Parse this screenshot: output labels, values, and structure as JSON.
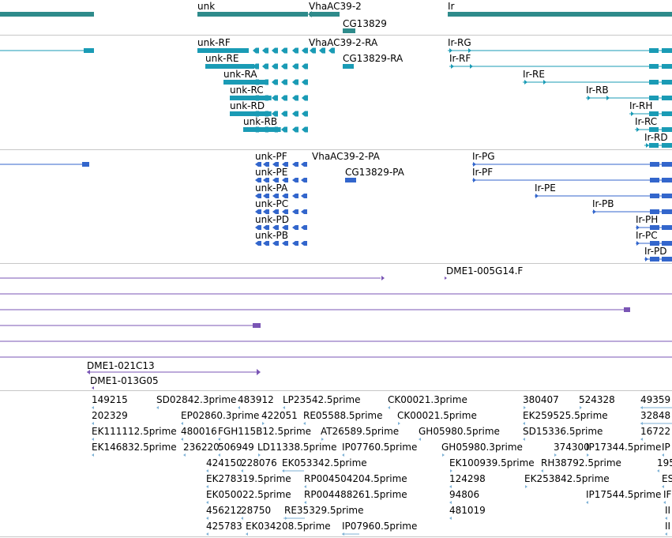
{
  "colors": {
    "gene": "#2e8b8b",
    "transcript": "#1a9bb5",
    "protein": "#3366cc",
    "clone": "#7a55b5",
    "est": "#7fb2d6"
  },
  "tracks": {
    "genes": {
      "labels": [
        "unk",
        "VhaAC39-2",
        "CG13829",
        "Ir"
      ]
    },
    "transcripts": {
      "labels": [
        "unk-RF",
        "unk-RE",
        "unk-RA",
        "unk-RC",
        "unk-RD",
        "unk-RB",
        "VhaAC39-2-RA",
        "CG13829-RA",
        "Ir-RG",
        "Ir-RF",
        "Ir-RE",
        "Ir-RB",
        "Ir-RH",
        "Ir-RC",
        "Ir-RD"
      ]
    },
    "proteins": {
      "labels": [
        "unk-PF",
        "unk-PE",
        "unk-PA",
        "unk-PC",
        "unk-PD",
        "unk-PB",
        "VhaAC39-2-PA",
        "CG13829-PA",
        "Ir-PG",
        "Ir-PF",
        "Ir-PE",
        "Ir-PB",
        "Ir-PH",
        "Ir-PC",
        "Ir-PD"
      ]
    },
    "clones": {
      "labels": [
        "DME1-005G14.F",
        "DME1-021C13",
        "DME1-013G05"
      ]
    },
    "ests": {
      "labels": [
        "149215",
        "SD02842.3prime",
        "483912",
        "LP23542.5prime",
        "CK00021.3prime",
        "380407",
        "524328",
        "49359",
        "202329",
        "EP02860.3prime",
        "422051",
        "RE05588.5prime",
        "CK00021.5prime",
        "EK259525.5prime",
        "32848",
        "EK111112.5prime",
        "480016",
        "FGH115B12.5prime",
        "AT26589.5prime",
        "GH05980.5prime",
        "SD15336.5prime",
        "16722",
        "EK146832.5prime",
        "236220",
        "506949",
        "LD11338.5prime",
        "IP07760.5prime",
        "GH05980.3prime",
        "374300",
        "IP17344.5prime",
        "IP",
        "424150",
        "228076",
        "EK053342.5prime",
        "EK100939.5prime",
        "RH38792.5prime",
        "195",
        "EK278319.5prime",
        "RP004504204.5prime",
        "124298",
        "EK253842.5prime",
        "ES",
        "EK050022.5prime",
        "RP004488261.5prime",
        "94806",
        "IP17544.5prime",
        "IF",
        "456212",
        "28750",
        "RE35329.5prime",
        "481019",
        "II",
        "425783",
        "EK034208.5prime",
        "IP07960.5prime",
        "II"
      ]
    }
  }
}
